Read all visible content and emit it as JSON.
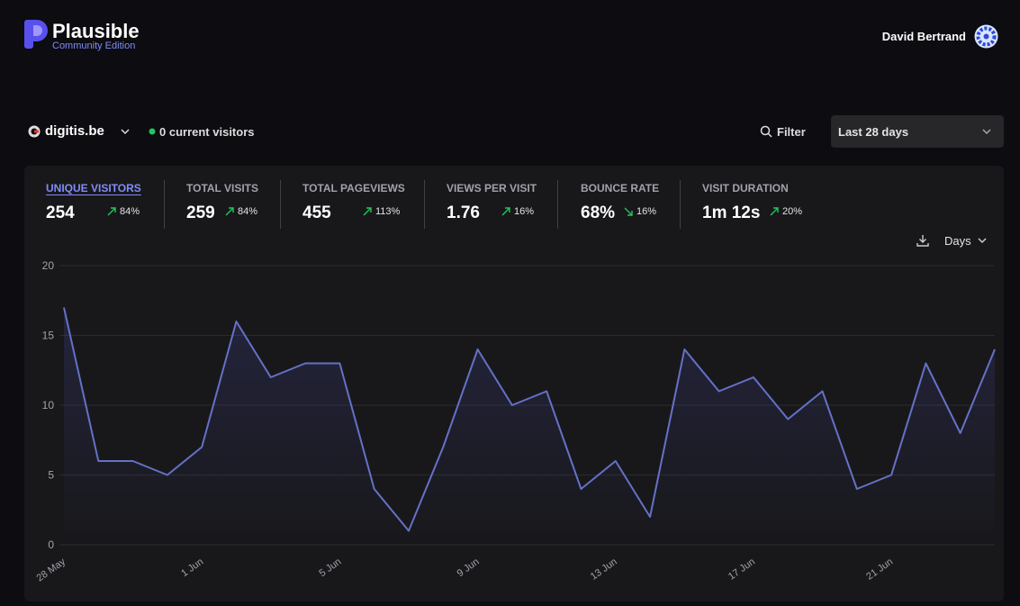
{
  "header": {
    "brand": "Plausible",
    "edition": "Community Edition",
    "user": "David Bertrand"
  },
  "site": {
    "domain": "digitis.be",
    "current_visitors": "0 current visitors"
  },
  "filter": "Filter",
  "period": "Last 28 days",
  "stats": [
    {
      "label": "UNIQUE VISITORS",
      "value": "254",
      "change": "84%",
      "direction": "up"
    },
    {
      "label": "TOTAL VISITS",
      "value": "259",
      "change": "84%",
      "direction": "up"
    },
    {
      "label": "TOTAL PAGEVIEWS",
      "value": "455",
      "change": "113%",
      "direction": "up"
    },
    {
      "label": "VIEWS PER VISIT",
      "value": "1.76",
      "change": "16%",
      "direction": "up"
    },
    {
      "label": "BOUNCE RATE",
      "value": "68%",
      "change": "16%",
      "direction": "down"
    },
    {
      "label": "VISIT DURATION",
      "value": "1m 12s",
      "change": "20%",
      "direction": "up"
    }
  ],
  "interval": "Days",
  "chart_data": {
    "type": "line",
    "categories": [
      "28 May",
      null,
      null,
      null,
      "1 Jun",
      null,
      null,
      null,
      "5 Jun",
      null,
      null,
      null,
      "9 Jun",
      null,
      null,
      null,
      "13 Jun",
      null,
      null,
      null,
      "17 Jun",
      null,
      null,
      null,
      "21 Jun",
      null,
      null,
      null
    ],
    "series": [
      {
        "name": "Unique visitors",
        "color": "#6571c6",
        "values": [
          17,
          6,
          6,
          5,
          7,
          16,
          12,
          13,
          13,
          4,
          1,
          7,
          14,
          10,
          11,
          4,
          6,
          2,
          14,
          11,
          12,
          9,
          11,
          4,
          5,
          13,
          8,
          14
        ]
      }
    ],
    "ylim": [
      0,
      20
    ],
    "yticks": [
      0,
      5,
      10,
      15,
      20
    ],
    "grid": true
  }
}
